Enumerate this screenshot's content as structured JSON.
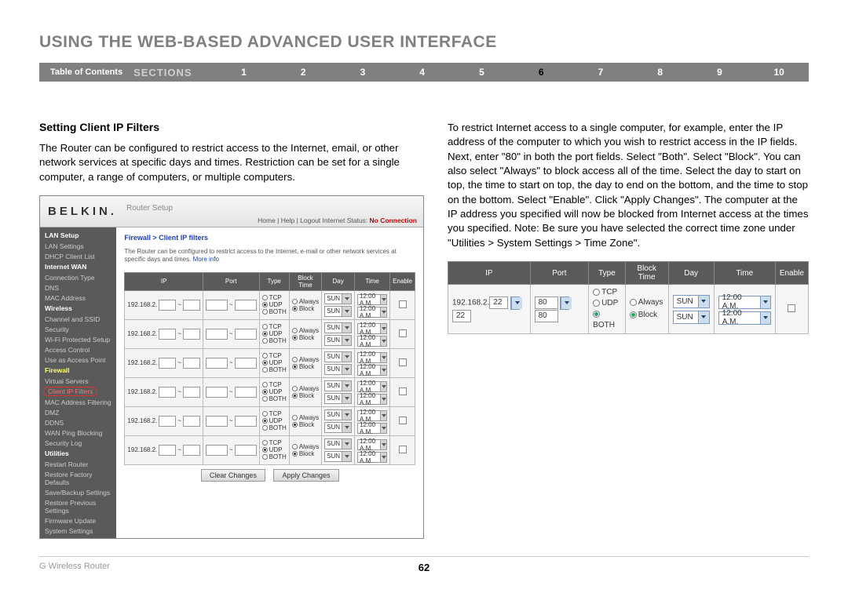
{
  "page": {
    "title": "USING THE WEB-BASED ADVANCED USER INTERFACE",
    "toc": "Table of Contents",
    "sections_label": "SECTIONS",
    "sections": [
      "1",
      "2",
      "3",
      "4",
      "5",
      "6",
      "7",
      "8",
      "9",
      "10"
    ],
    "active_section": "6",
    "footer_left": "G Wireless Router",
    "page_number": "62"
  },
  "left": {
    "heading": "Setting Client IP Filters",
    "paragraph": "The Router can be configured to restrict access to the Internet, email, or other network services at specific days and times. Restriction can be set for a single computer, a range of computers, or multiple computers."
  },
  "right": {
    "paragraph": "To restrict Internet access to a single computer, for example, enter the IP address of the computer to which you wish to restrict access in the IP fields. Next, enter \"80\" in both the port fields. Select \"Both\". Select \"Block\". You can also select \"Always\" to block access all of the time. Select the day to start on top, the time to start on top, the day to end on the bottom, and the time to stop on the bottom. Select \"Enable\". Click \"Apply Changes\". The computer at the IP address you specified will now be blocked from Internet access at the times you specified. Note: Be sure you have selected the correct time zone under \"Utilities > System Settings > Time Zone\"."
  },
  "screenshot": {
    "brand": "BELKIN.",
    "title": "Router Setup",
    "toplinks": "Home | Help | Logout   Internet Status:",
    "status": "No Connection",
    "crumb": "Firewall > Client IP filters",
    "desc_text": "The Router can be configured to restrict access to the Internet, e-mail or other network services at specific days and times. ",
    "desc_link": "More info",
    "sidebar": [
      {
        "t": "hdr",
        "l": "LAN Setup"
      },
      {
        "t": "itm",
        "l": "LAN Settings"
      },
      {
        "t": "itm",
        "l": "DHCP Client List"
      },
      {
        "t": "hdr",
        "l": "Internet WAN"
      },
      {
        "t": "itm",
        "l": "Connection Type"
      },
      {
        "t": "itm",
        "l": "DNS"
      },
      {
        "t": "itm",
        "l": "MAC Address"
      },
      {
        "t": "hdr",
        "l": "Wireless"
      },
      {
        "t": "itm",
        "l": "Channel and SSID"
      },
      {
        "t": "itm",
        "l": "Security"
      },
      {
        "t": "itm",
        "l": "Wi-Fi Protected Setup"
      },
      {
        "t": "itm",
        "l": "Access Control"
      },
      {
        "t": "itm",
        "l": "Use as Access Point"
      },
      {
        "t": "hdr",
        "l": "Firewall",
        "active": true
      },
      {
        "t": "itm",
        "l": "Virtual Servers"
      },
      {
        "t": "itm",
        "l": "Client IP Filters",
        "selected": true
      },
      {
        "t": "itm",
        "l": "MAC Address Filtering"
      },
      {
        "t": "itm",
        "l": "DMZ"
      },
      {
        "t": "itm",
        "l": "DDNS"
      },
      {
        "t": "itm",
        "l": "WAN Ping Blocking"
      },
      {
        "t": "itm",
        "l": "Security Log"
      },
      {
        "t": "hdr",
        "l": "Utilities"
      },
      {
        "t": "itm",
        "l": "Restart Router"
      },
      {
        "t": "itm",
        "l": "Restore Factory Defaults"
      },
      {
        "t": "itm",
        "l": "Save/Backup Settings"
      },
      {
        "t": "itm",
        "l": "Restore Previous Settings"
      },
      {
        "t": "itm",
        "l": "Firmware Update"
      },
      {
        "t": "itm",
        "l": "System Settings"
      }
    ],
    "table": {
      "headers": [
        "IP",
        "Port",
        "Type",
        "Block Time",
        "Day",
        "Time",
        "Enable"
      ],
      "ip_prefix": "192.168.2.",
      "types": [
        "TCP",
        "UDP",
        "BOTH"
      ],
      "block_opts": [
        "Always",
        "Block"
      ],
      "day": "SUN",
      "time": "12:00 A.M.",
      "rows": 6,
      "btn_clear": "Clear Changes",
      "btn_apply": "Apply Changes"
    }
  },
  "example": {
    "headers": [
      "IP",
      "Port",
      "Type",
      "Block Time",
      "Day",
      "Time",
      "Enable"
    ],
    "ip_prefix": "192.168.2.",
    "ip_a": "22",
    "ip_b": "22",
    "port_a": "80",
    "port_b": "80",
    "types": [
      "TCP",
      "UDP",
      "BOTH"
    ],
    "block_opts": [
      "Always",
      "Block"
    ],
    "day": "SUN",
    "time": "12:00 A.M."
  }
}
